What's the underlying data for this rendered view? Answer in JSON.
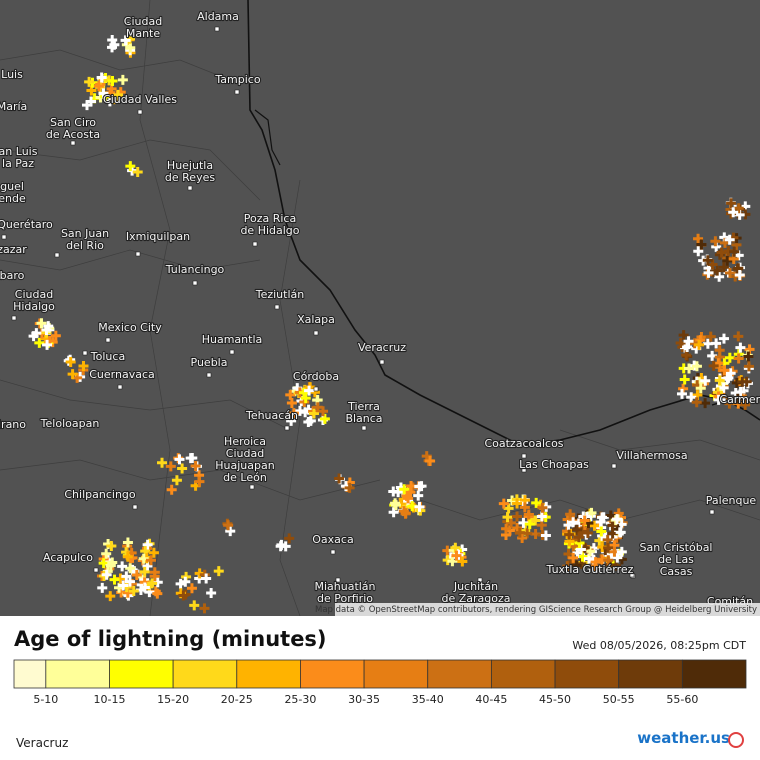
{
  "map": {
    "places": [
      {
        "lines": [
          "Aldama"
        ]
      },
      {
        "lines": [
          "Ciudad",
          "Mante"
        ]
      },
      {
        "lines": [
          "Tampico"
        ]
      },
      {
        "lines": [
          "Ciudad Valles"
        ]
      },
      {
        "lines": [
          "San Ciro",
          "de Acosta"
        ]
      },
      {
        "lines": [
          "Huejutla",
          "de Reyes"
        ]
      },
      {
        "lines": [
          "Poza Rica",
          "de Hidalgo"
        ]
      },
      {
        "lines": [
          "Querétaro"
        ]
      },
      {
        "lines": [
          "San Juan",
          "del Rio"
        ]
      },
      {
        "lines": [
          "Ixmiquilpan"
        ]
      },
      {
        "lines": [
          "Tulancingo"
        ]
      },
      {
        "lines": [
          "Teziutlán"
        ]
      },
      {
        "lines": [
          "Xalapa"
        ]
      },
      {
        "lines": [
          "Ciudad",
          "Hidalgo"
        ]
      },
      {
        "lines": [
          "Mexico City"
        ]
      },
      {
        "lines": [
          "Huamantla"
        ]
      },
      {
        "lines": [
          "Toluca"
        ]
      },
      {
        "lines": [
          "Puebla"
        ]
      },
      {
        "lines": [
          "Veracruz"
        ]
      },
      {
        "lines": [
          "Córdoba"
        ]
      },
      {
        "lines": [
          "Cuernavaca"
        ]
      },
      {
        "lines": [
          "Tierra",
          "Blanca"
        ]
      },
      {
        "lines": [
          "Tehuacán"
        ]
      },
      {
        "lines": [
          "Heroica",
          "Ciudad",
          "Huajuapan",
          "de León"
        ]
      },
      {
        "lines": [
          "Teloloapan"
        ]
      },
      {
        "lines": [
          "Coatzacoalcos"
        ]
      },
      {
        "lines": [
          "Las Choapas"
        ]
      },
      {
        "lines": [
          "Villahermosa"
        ]
      },
      {
        "lines": [
          "Chilpancingo"
        ]
      },
      {
        "lines": [
          "Acapulco"
        ]
      },
      {
        "lines": [
          "Oaxaca"
        ]
      },
      {
        "lines": [
          "Palenque"
        ]
      },
      {
        "lines": [
          "San Cristóbal",
          "de Las",
          "Casas"
        ]
      },
      {
        "lines": [
          "Miahuatlán",
          "de Porfirio"
        ]
      },
      {
        "lines": [
          "Juchitán",
          "de Zaragoza"
        ]
      },
      {
        "lines": [
          "Tuxtla Gutiérrez"
        ]
      },
      {
        "lines": [
          "Carmen"
        ]
      },
      {
        "lines": [
          "Luis"
        ]
      },
      {
        "lines": [
          "María"
        ]
      },
      {
        "lines": [
          "an Luis",
          "la Paz"
        ]
      },
      {
        "lines": [
          "guel",
          "ende"
        ]
      },
      {
        "lines": [
          "zazar"
        ]
      },
      {
        "lines": [
          "baro"
        ]
      },
      {
        "lines": [
          "irano"
        ]
      },
      {
        "lines": [
          "Comitán"
        ]
      }
    ],
    "attribution": "Map data © OpenStreetMap contributors, rendering GIScience Research Group @ Heidelberg University"
  },
  "legend": {
    "title": "Age of lightning (minutes)",
    "timestamp": "Wed 08/05/2026, 08:25pm CDT",
    "bins": [
      {
        "label": "5-10",
        "color": "#ffff99"
      },
      {
        "label": "10-15",
        "color": "#ffff00"
      },
      {
        "label": "15-20",
        "color": "#ffd91a"
      },
      {
        "label": "20-25",
        "color": "#ffb300"
      },
      {
        "label": "25-30",
        "color": "#fb8c1a"
      },
      {
        "label": "30-35",
        "color": "#e67e14"
      },
      {
        "label": "35-40",
        "color": "#cc7014"
      },
      {
        "label": "40-45",
        "color": "#b0600e"
      },
      {
        "label": "45-50",
        "color": "#8f4c0b"
      },
      {
        "label": "50-55",
        "color": "#6e3b0a"
      },
      {
        "label": "55-60",
        "color": "#4f2b08"
      }
    ]
  },
  "footer": {
    "location": "Veracruz",
    "logo": "weather.us"
  }
}
